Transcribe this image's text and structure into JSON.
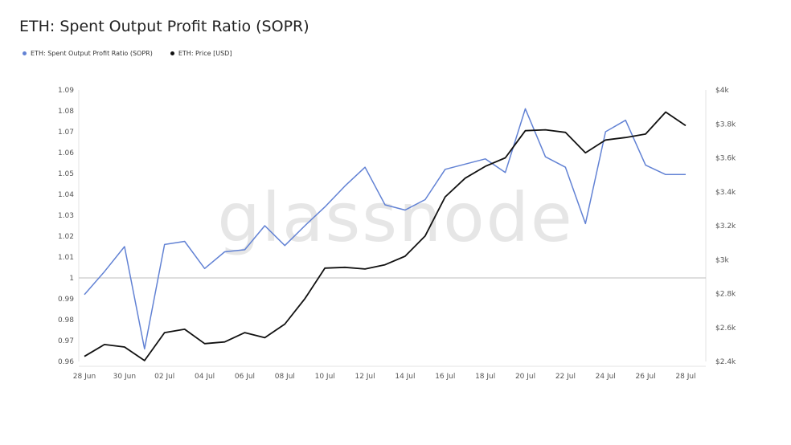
{
  "watermark": "glassnode",
  "chart_data": {
    "type": "line",
    "title": "ETH: Spent Output Profit Ratio (SOPR)",
    "legend_placement": "top-left",
    "grid": false,
    "x": [
      "28 Jun",
      "29 Jun",
      "30 Jun",
      "01 Jul",
      "02 Jul",
      "03 Jul",
      "04 Jul",
      "05 Jul",
      "06 Jul",
      "07 Jul",
      "08 Jul",
      "09 Jul",
      "10 Jul",
      "11 Jul",
      "12 Jul",
      "13 Jul",
      "14 Jul",
      "15 Jul",
      "16 Jul",
      "17 Jul",
      "18 Jul",
      "19 Jul",
      "20 Jul",
      "21 Jul",
      "22 Jul",
      "23 Jul",
      "24 Jul",
      "25 Jul",
      "26 Jul",
      "27 Jul",
      "28 Jul"
    ],
    "x_tick_labels": [
      "28 Jun",
      "30 Jun",
      "02 Jul",
      "04 Jul",
      "06 Jul",
      "08 Jul",
      "10 Jul",
      "12 Jul",
      "14 Jul",
      "16 Jul",
      "18 Jul",
      "20 Jul",
      "22 Jul",
      "24 Jul",
      "26 Jul",
      "28 Jul"
    ],
    "left_axis": {
      "ylim": [
        0.96,
        1.09
      ],
      "tick_labels": [
        "0.96",
        "0.97",
        "0.98",
        "0.99",
        "1",
        "1.01",
        "1.02",
        "1.03",
        "1.04",
        "1.05",
        "1.06",
        "1.07",
        "1.08",
        "1.09"
      ],
      "reference_line": 1
    },
    "right_axis": {
      "ylim": [
        2400,
        4000
      ],
      "ticks": [
        2400,
        2600,
        2800,
        3000,
        3200,
        3400,
        3600,
        3800,
        4000
      ],
      "tick_labels": [
        "$2.4k",
        "$2.6k",
        "$2.8k",
        "$3k",
        "$3.2k",
        "$3.4k",
        "$3.6k",
        "$3.8k",
        "$4k"
      ]
    },
    "series": [
      {
        "name": "ETH: Spent Output Profit Ratio (SOPR)",
        "axis": "left",
        "color": "#6282d4",
        "values": [
          0.992,
          1.003,
          1.015,
          0.966,
          1.016,
          1.0175,
          1.0045,
          1.0125,
          1.0135,
          1.025,
          1.0155,
          1.025,
          1.034,
          1.044,
          1.053,
          1.035,
          1.0325,
          1.0375,
          1.052,
          1.0545,
          1.057,
          1.0505,
          1.081,
          1.058,
          1.053,
          1.026,
          1.07,
          1.0755,
          1.054,
          1.0495,
          1.0495
        ]
      },
      {
        "name": "ETH: Price [USD]",
        "axis": "right",
        "color": "#111111",
        "values": [
          2430,
          2500,
          2485,
          2405,
          2570,
          2590,
          2505,
          2515,
          2570,
          2540,
          2620,
          2770,
          2950,
          2955,
          2945,
          2970,
          3020,
          3140,
          3370,
          3480,
          3550,
          3600,
          3760,
          3765,
          3750,
          3630,
          3705,
          3720,
          3740,
          3870,
          3790
        ]
      }
    ]
  }
}
